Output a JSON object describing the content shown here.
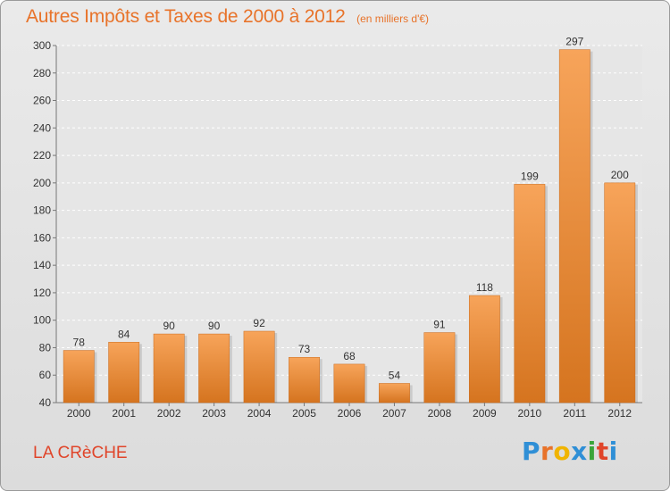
{
  "header": {
    "title": "Autres Impôts et Taxes de 2000 à 2012",
    "subtitle": "(en milliers d'€)"
  },
  "footer": {
    "commune": "LA CRèCHE",
    "logo_letters": [
      "P",
      "r",
      "o",
      "x",
      "i",
      "t",
      "i"
    ],
    "logo_colors": [
      "#2f8fd6",
      "#e8732a",
      "#f0b400",
      "#2f8fd6",
      "#3aa53a",
      "#e0452a",
      "#2f8fd6"
    ]
  },
  "colors": {
    "bar_top": "#f7a45a",
    "bar_bottom": "#d5741f",
    "accent": "#e8732a"
  },
  "chart_data": {
    "type": "bar",
    "categories": [
      "2000",
      "2001",
      "2002",
      "2003",
      "2004",
      "2005",
      "2006",
      "2007",
      "2008",
      "2009",
      "2010",
      "2011",
      "2012"
    ],
    "values": [
      78,
      84,
      90,
      90,
      92,
      73,
      68,
      54,
      91,
      118,
      199,
      297,
      200
    ],
    "title": "Autres Impôts et Taxes de 2000 à 2012",
    "xlabel": "",
    "ylabel": "",
    "ylim": [
      40,
      300
    ],
    "yticks": [
      40,
      60,
      80,
      100,
      120,
      140,
      160,
      180,
      200,
      220,
      240,
      260,
      280,
      300
    ],
    "grid": true,
    "data_labels": true
  }
}
